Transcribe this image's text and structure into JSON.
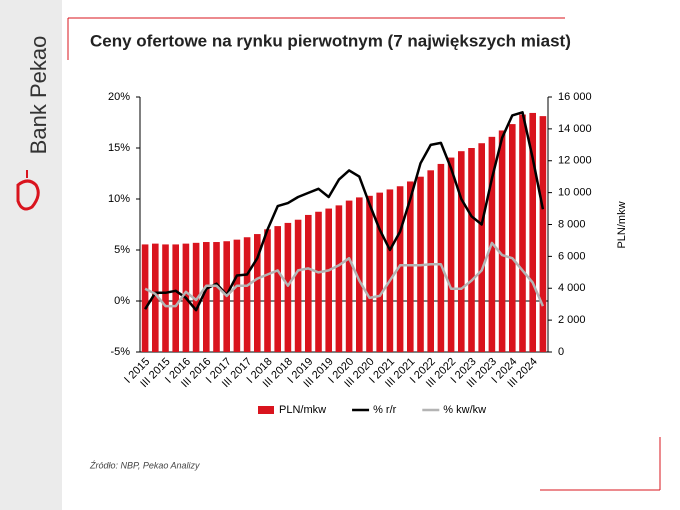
{
  "brand": "Bank Pekao",
  "chart_data": {
    "type": "bar",
    "title": "Ceny ofertowe na rynku pierwotnym (7 największych miast)",
    "source": "Źródło: NBP, Pekao Analizy",
    "y2label": "PLN/mkw",
    "categories": [
      "I 2015",
      null,
      "III 2015",
      null,
      "I 2016",
      null,
      "III 2016",
      null,
      "I 2017",
      null,
      "III 2017",
      null,
      "I 2018",
      null,
      "III 2018",
      null,
      "I 2019",
      null,
      "III 2019",
      null,
      "I 2020",
      null,
      "III 2020",
      null,
      "I 2021",
      null,
      "III 2021",
      null,
      "I 2022",
      null,
      "III 2022",
      null,
      "I 2023",
      null,
      "III 2023",
      null,
      "I 2024",
      null,
      "III 2024",
      null
    ],
    "series": [
      {
        "name": "PLN/mkw",
        "type": "bar",
        "axis": "y2",
        "color": "#d9141e",
        "values": [
          6750,
          6800,
          6750,
          6750,
          6800,
          6850,
          6900,
          6900,
          6950,
          7050,
          7200,
          7400,
          7700,
          7900,
          8100,
          8300,
          8600,
          8800,
          9000,
          9200,
          9500,
          9700,
          9800,
          10000,
          10200,
          10400,
          10700,
          11000,
          11400,
          11800,
          12200,
          12600,
          12800,
          13100,
          13500,
          13900,
          14300,
          14900,
          15000,
          14800
        ]
      },
      {
        "name": "% r/r",
        "type": "line",
        "color": "#000000",
        "values": [
          -0.8,
          0.8,
          0.8,
          1.0,
          0.3,
          -0.9,
          1.2,
          1.7,
          0.6,
          2.5,
          2.6,
          4.2,
          7.0,
          9.3,
          9.6,
          10.2,
          10.6,
          11.0,
          10.2,
          11.9,
          12.8,
          12.2,
          9.5,
          7.0,
          5.0,
          6.8,
          10.0,
          13.5,
          15.3,
          15.5,
          13.0,
          10.0,
          8.3,
          7.5,
          12.0,
          16.0,
          18.2,
          18.5,
          14.0,
          9.0
        ]
      },
      {
        "name": "% kw/kw",
        "type": "line",
        "color": "#b4b4b4",
        "values": [
          1.2,
          0.7,
          -0.5,
          -0.5,
          0.9,
          0.1,
          1.5,
          1.5,
          0.5,
          1.5,
          1.5,
          2.2,
          2.6,
          3.0,
          1.5,
          3.0,
          3.2,
          2.8,
          3.0,
          3.5,
          4.2,
          2.0,
          0.3,
          0.5,
          2.0,
          3.5,
          3.5,
          3.5,
          3.6,
          3.6,
          1.2,
          1.2,
          2.0,
          3.0,
          5.7,
          4.5,
          4.2,
          3.0,
          1.8,
          -0.5
        ]
      }
    ],
    "ylim": [
      -5,
      20
    ],
    "yticks": [
      {
        "value": -5,
        "label": "-5%"
      },
      {
        "value": 0,
        "label": "0%"
      },
      {
        "value": 5,
        "label": "5%"
      },
      {
        "value": 10,
        "label": "10%"
      },
      {
        "value": 15,
        "label": "15%"
      },
      {
        "value": 20,
        "label": "20%"
      }
    ],
    "y2lim": [
      0,
      16000
    ],
    "y2ticks": [
      0,
      {
        "value": 2000,
        "label": "2 000"
      },
      {
        "value": 4000,
        "label": "4 000"
      },
      {
        "value": 6000,
        "label": "6 000"
      },
      {
        "value": 8000,
        "label": "8 000"
      },
      {
        "value": 10000,
        "label": "10 000"
      },
      {
        "value": 12000,
        "label": "12 000"
      },
      {
        "value": 14000,
        "label": "14 000"
      },
      {
        "value": 16000,
        "label": "16 000"
      }
    ],
    "legend": "bottom"
  }
}
